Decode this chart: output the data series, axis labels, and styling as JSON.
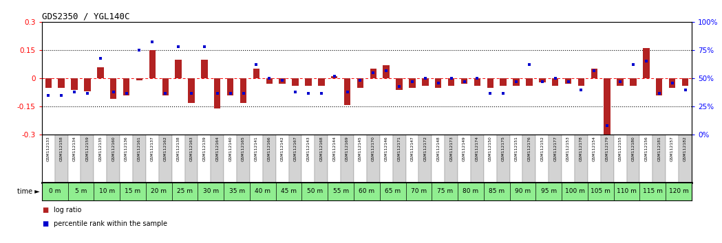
{
  "title": "GDS2350 / YGL140C",
  "gsm_labels": [
    "GSM112133",
    "GSM112158",
    "GSM112134",
    "GSM112159",
    "GSM112135",
    "GSM112160",
    "GSM112136",
    "GSM112161",
    "GSM112137",
    "GSM112162",
    "GSM112138",
    "GSM112163",
    "GSM112139",
    "GSM112164",
    "GSM112140",
    "GSM112165",
    "GSM112141",
    "GSM112166",
    "GSM112142",
    "GSM112167",
    "GSM112143",
    "GSM112168",
    "GSM112144",
    "GSM112169",
    "GSM112145",
    "GSM112170",
    "GSM112146",
    "GSM112171",
    "GSM112147",
    "GSM112172",
    "GSM112148",
    "GSM112173",
    "GSM112149",
    "GSM112174",
    "GSM112150",
    "GSM112175",
    "GSM112151",
    "GSM112176",
    "GSM112152",
    "GSM112177",
    "GSM112153",
    "GSM112178",
    "GSM112154",
    "GSM112179",
    "GSM112155",
    "GSM112180",
    "GSM112156",
    "GSM112181",
    "GSM112157",
    "GSM112182"
  ],
  "time_labels": [
    "0 m",
    "5 m",
    "10 m",
    "15 m",
    "20 m",
    "25 m",
    "30 m",
    "35 m",
    "40 m",
    "45 m",
    "50 m",
    "55 m",
    "60 m",
    "65 m",
    "70 m",
    "75 m",
    "80 m",
    "85 m",
    "90 m",
    "95 m",
    "100 m",
    "105 m",
    "110 m",
    "115 m",
    "120 m"
  ],
  "log_ratio": [
    -0.05,
    -0.05,
    -0.06,
    -0.07,
    0.06,
    -0.11,
    -0.09,
    -0.01,
    0.15,
    -0.09,
    0.1,
    -0.13,
    0.1,
    -0.16,
    -0.09,
    -0.13,
    0.05,
    -0.03,
    -0.03,
    -0.04,
    -0.04,
    -0.04,
    0.01,
    -0.14,
    -0.05,
    0.05,
    0.07,
    -0.06,
    -0.05,
    -0.04,
    -0.05,
    -0.04,
    -0.03,
    -0.04,
    -0.05,
    -0.04,
    -0.04,
    -0.04,
    -0.02,
    -0.04,
    -0.03,
    -0.04,
    0.05,
    -0.32,
    -0.04,
    -0.04,
    0.16,
    -0.09,
    -0.05,
    -0.04
  ],
  "percentile": [
    35,
    35,
    38,
    37,
    68,
    38,
    37,
    75,
    82,
    37,
    78,
    37,
    78,
    37,
    37,
    37,
    62,
    50,
    48,
    38,
    37,
    37,
    52,
    38,
    48,
    55,
    57,
    43,
    47,
    50,
    46,
    50,
    47,
    50,
    37,
    37,
    47,
    62,
    47,
    50,
    47,
    40,
    57,
    8,
    47,
    62,
    65,
    37,
    46,
    40
  ],
  "bar_color": "#b22222",
  "dot_color": "#0000cd",
  "bg_color": "#ffffff",
  "ylim_left": [
    -0.3,
    0.3
  ],
  "left_ticks": [
    -0.3,
    -0.15,
    0.0,
    0.15,
    0.3
  ],
  "right_ticks": [
    0,
    25,
    50,
    75,
    100
  ],
  "right_labels": [
    "0%",
    "25%",
    "50%",
    "75%",
    "100%"
  ],
  "time_bg_color": "#90EE90",
  "gsm_bg_light": "#ffffff",
  "gsm_bg_dark": "#d3d3d3",
  "separator_color": "#000000",
  "legend_bar_label": "log ratio",
  "legend_dot_label": "percentile rank within the sample",
  "bar_width": 0.5
}
